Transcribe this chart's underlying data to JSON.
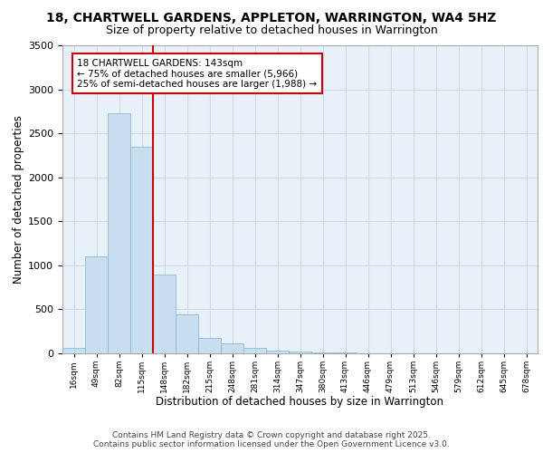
{
  "title1": "18, CHARTWELL GARDENS, APPLETON, WARRINGTON, WA4 5HZ",
  "title2": "Size of property relative to detached houses in Warrington",
  "xlabel": "Distribution of detached houses by size in Warrington",
  "ylabel": "Number of detached properties",
  "categories": [
    "16sqm",
    "49sqm",
    "82sqm",
    "115sqm",
    "148sqm",
    "182sqm",
    "215sqm",
    "248sqm",
    "281sqm",
    "314sqm",
    "347sqm",
    "380sqm",
    "413sqm",
    "446sqm",
    "479sqm",
    "513sqm",
    "546sqm",
    "579sqm",
    "612sqm",
    "645sqm",
    "678sqm"
  ],
  "values": [
    60,
    1100,
    2730,
    2350,
    900,
    440,
    170,
    110,
    65,
    35,
    25,
    15,
    10,
    5,
    3,
    2,
    1,
    1,
    1,
    0,
    0
  ],
  "bar_color": "#c9dff0",
  "bar_edge_color": "#7ab3d3",
  "vline_color": "#cc0000",
  "annotation_text": "18 CHARTWELL GARDENS: 143sqm\n← 75% of detached houses are smaller (5,966)\n25% of semi-detached houses are larger (1,988) →",
  "annotation_box_color": "#ffffff",
  "annotation_box_edge_color": "#cc0000",
  "ylim": [
    0,
    3500
  ],
  "yticks": [
    0,
    500,
    1000,
    1500,
    2000,
    2500,
    3000,
    3500
  ],
  "grid_color": "#d0dce8",
  "background_color": "#e8f0f8",
  "footer_text": "Contains HM Land Registry data © Crown copyright and database right 2025.\nContains public sector information licensed under the Open Government Licence v3.0.",
  "title1_fontsize": 10,
  "title2_fontsize": 9,
  "xlabel_fontsize": 8.5,
  "ylabel_fontsize": 8.5,
  "annotation_fontsize": 7.5,
  "footer_fontsize": 6.5
}
